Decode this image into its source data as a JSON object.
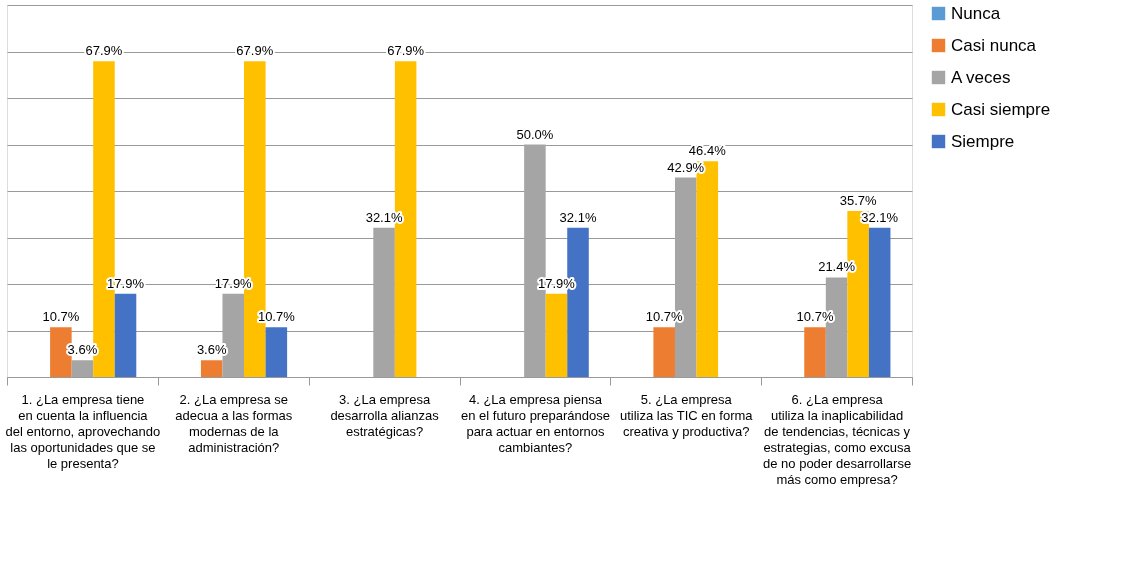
{
  "chart_data": {
    "type": "bar",
    "categories": [
      "1.      ¿La empresa tiene en cuenta la influencia del entorno, aprovechando las oportunidades que se le presenta?",
      "2.      ¿La empresa se adecua a las formas modernas de la administración?",
      "3.      ¿La empresa desarrolla alianzas estratégicas?",
      "4.      ¿La empresa piensa en el futuro preparándose para actuar en entornos cambiantes?",
      "5.      ¿La empresa utiliza las TIC en forma creativa y productiva?",
      "6.      ¿La empresa utiliza la inaplicabilidad de tendencias, técnicas y estrategias, como excusa de no poder desarrollarse más como empresa?"
    ],
    "series": [
      {
        "name": "Nunca",
        "color": "#5b9bd5",
        "values": [
          null,
          null,
          null,
          null,
          null,
          null
        ],
        "value_labels": [
          null,
          null,
          null,
          null,
          null,
          null
        ]
      },
      {
        "name": "Casi nunca",
        "color": "#ed7d31",
        "values": [
          10.7,
          3.6,
          null,
          null,
          10.7,
          10.7
        ],
        "value_labels": [
          "10.7%",
          "3.6%",
          null,
          null,
          "10.7%",
          "10.7%"
        ]
      },
      {
        "name": "A veces",
        "color": "#a5a5a5",
        "values": [
          3.6,
          17.9,
          32.1,
          50.0,
          42.9,
          21.4
        ],
        "value_labels": [
          "3.6%",
          "17.9%",
          "32.1%",
          "50.0%",
          "42.9%",
          "21.4%"
        ]
      },
      {
        "name": "Casi siempre",
        "color": "#ffc000",
        "values": [
          67.9,
          67.9,
          67.9,
          17.9,
          46.4,
          35.7
        ],
        "value_labels": [
          "67.9%",
          "67.9%",
          "67.9%",
          "17.9%",
          "46.4%",
          "35.7%"
        ]
      },
      {
        "name": "Siempre",
        "color": "#4472c4",
        "values": [
          17.9,
          10.7,
          null,
          32.1,
          null,
          32.1
        ],
        "value_labels": [
          "17.9%",
          "10.7%",
          null,
          "32.1%",
          null,
          "32.1%"
        ]
      }
    ],
    "ylim": [
      0,
      80
    ],
    "yticks": [
      {
        "value": 0,
        "label": null
      },
      {
        "value": 10,
        "label": null
      },
      {
        "value": 20,
        "label": null
      },
      {
        "value": 30,
        "label": null
      },
      {
        "value": 40,
        "label": null
      },
      {
        "value": 50,
        "label": null
      },
      {
        "value": 60,
        "label": null
      },
      {
        "value": 70,
        "label": null
      },
      {
        "value": 80,
        "label": null
      }
    ],
    "grid": "y",
    "legend": "right",
    "tick_labels": "x"
  }
}
